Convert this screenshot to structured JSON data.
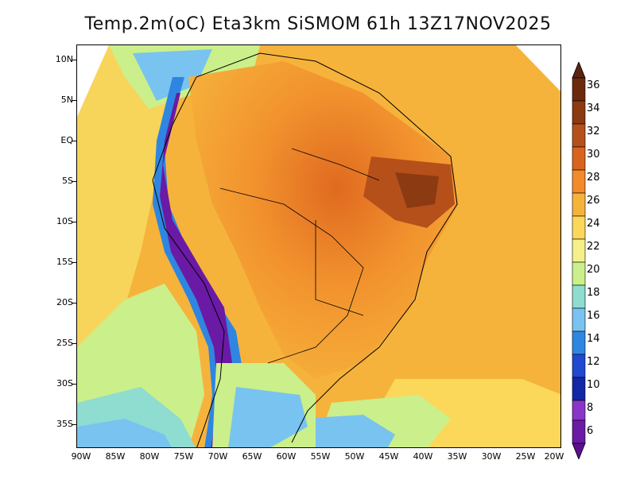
{
  "title": "Temp.2m(oC) Eta3km SiSMOM 61h 13Z17NOV2025",
  "map": {
    "region": "South America",
    "lat_labels": [
      "10N",
      "5N",
      "EQ",
      "5S",
      "10S",
      "15S",
      "20S",
      "25S",
      "30S",
      "35S"
    ],
    "lon_labels": [
      "90W",
      "85W",
      "80W",
      "75W",
      "70W",
      "65W",
      "60W",
      "55W",
      "50W",
      "45W",
      "40W",
      "35W",
      "30W",
      "25W",
      "20W"
    ]
  },
  "colorbar": {
    "labels": [
      "36",
      "34",
      "32",
      "30",
      "28",
      "26",
      "24",
      "22",
      "20",
      "18",
      "16",
      "14",
      "12",
      "10",
      "8",
      "6"
    ],
    "colors": [
      "#6b2a0e",
      "#8c3a12",
      "#b5501a",
      "#d8641f",
      "#f28b2c",
      "#f6b33c",
      "#fbd85a",
      "#f6f08a",
      "#cbef8a",
      "#8fdcd0",
      "#79c3f0",
      "#2f86e0",
      "#1f49d0",
      "#1326a6",
      "#5e60e8",
      "#8a35c9",
      "#6a1aa5",
      "#5a1090"
    ]
  }
}
